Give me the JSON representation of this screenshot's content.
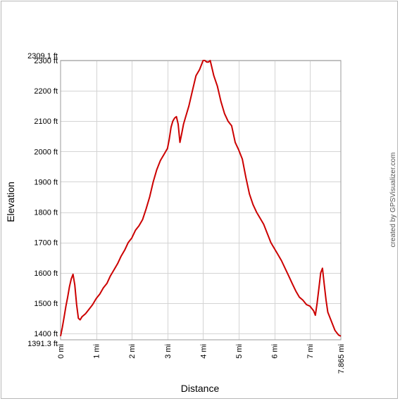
{
  "chart_data": {
    "type": "line",
    "xlabel": "Distance",
    "ylabel": "Elevation",
    "credit": "created by GPSVisualizer.com",
    "xlim": [
      0,
      7.865
    ],
    "ylim": [
      1391.3,
      2309.1
    ],
    "grid": true,
    "line_color": "#cc0000",
    "ytick_labels": [
      {
        "v": 2309.1,
        "label": "2309.1 ft"
      },
      {
        "v": 2300,
        "label": "2300 ft"
      },
      {
        "v": 2200,
        "label": "2200 ft"
      },
      {
        "v": 2100,
        "label": "2100 ft"
      },
      {
        "v": 2000,
        "label": "2000 ft"
      },
      {
        "v": 1900,
        "label": "1900 ft"
      },
      {
        "v": 1800,
        "label": "1800 ft"
      },
      {
        "v": 1700,
        "label": "1700 ft"
      },
      {
        "v": 1600,
        "label": "1600 ft"
      },
      {
        "v": 1500,
        "label": "1500 ft"
      },
      {
        "v": 1400,
        "label": "1400 ft"
      },
      {
        "v": 1391.3,
        "label": "1391.3 ft"
      }
    ],
    "xtick_labels": [
      {
        "v": 0,
        "label": "0 mi"
      },
      {
        "v": 1,
        "label": "1 mi"
      },
      {
        "v": 2,
        "label": "2 mi"
      },
      {
        "v": 3,
        "label": "3 mi"
      },
      {
        "v": 4,
        "label": "4 mi"
      },
      {
        "v": 5,
        "label": "5 mi"
      },
      {
        "v": 6,
        "label": "6 mi"
      },
      {
        "v": 7,
        "label": "7 mi"
      },
      {
        "v": 7.865,
        "label": "7.865 mi"
      }
    ],
    "x": [
      0,
      0.05,
      0.1,
      0.15,
      0.2,
      0.25,
      0.3,
      0.35,
      0.4,
      0.45,
      0.5,
      0.55,
      0.6,
      0.7,
      0.8,
      0.9,
      1.0,
      1.1,
      1.2,
      1.3,
      1.4,
      1.5,
      1.6,
      1.7,
      1.8,
      1.9,
      2.0,
      2.1,
      2.2,
      2.3,
      2.4,
      2.5,
      2.6,
      2.7,
      2.8,
      2.9,
      3.0,
      3.05,
      3.1,
      3.15,
      3.2,
      3.25,
      3.3,
      3.35,
      3.4,
      3.45,
      3.5,
      3.6,
      3.7,
      3.8,
      3.9,
      4.0,
      4.05,
      4.1,
      4.15,
      4.2,
      4.3,
      4.4,
      4.5,
      4.6,
      4.7,
      4.8,
      4.9,
      5.0,
      5.1,
      5.2,
      5.3,
      5.4,
      5.5,
      5.6,
      5.7,
      5.8,
      5.9,
      6.0,
      6.1,
      6.2,
      6.3,
      6.4,
      6.5,
      6.6,
      6.7,
      6.8,
      6.9,
      7.0,
      7.1,
      7.15,
      7.2,
      7.25,
      7.3,
      7.35,
      7.4,
      7.45,
      7.5,
      7.6,
      7.7,
      7.8,
      7.865
    ],
    "y": [
      1391.3,
      1420,
      1455,
      1490,
      1520,
      1555,
      1580,
      1595,
      1560,
      1495,
      1450,
      1445,
      1455,
      1465,
      1480,
      1495,
      1515,
      1530,
      1550,
      1565,
      1590,
      1610,
      1630,
      1655,
      1675,
      1700,
      1715,
      1740,
      1755,
      1775,
      1810,
      1850,
      1900,
      1940,
      1970,
      1990,
      2010,
      2040,
      2080,
      2100,
      2110,
      2115,
      2090,
      2030,
      2060,
      2090,
      2110,
      2150,
      2200,
      2250,
      2270,
      2300,
      2300,
      2295,
      2295,
      2300,
      2250,
      2215,
      2165,
      2125,
      2100,
      2085,
      2030,
      2005,
      1975,
      1915,
      1860,
      1825,
      1800,
      1780,
      1760,
      1730,
      1700,
      1680,
      1660,
      1640,
      1615,
      1590,
      1565,
      1540,
      1520,
      1510,
      1495,
      1490,
      1475,
      1460,
      1500,
      1550,
      1600,
      1615,
      1560,
      1510,
      1470,
      1440,
      1410,
      1395,
      1391.3
    ]
  }
}
